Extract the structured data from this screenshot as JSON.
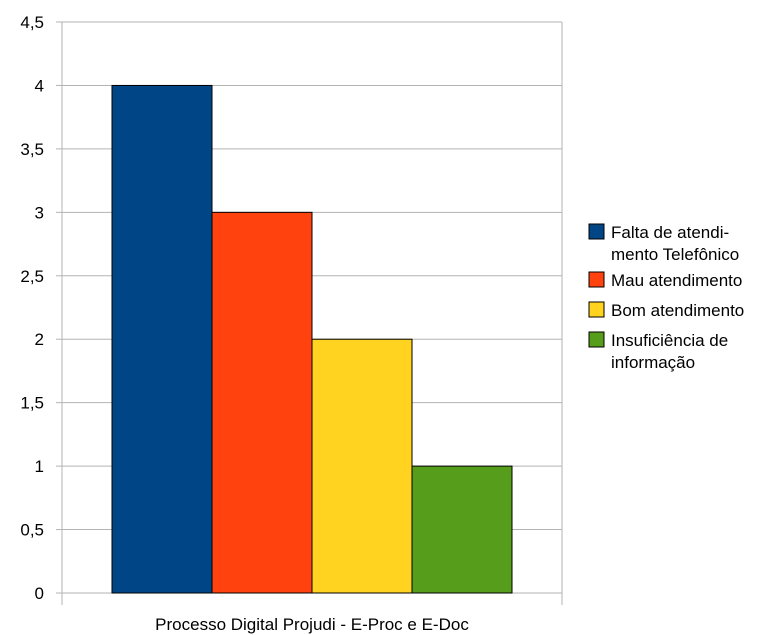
{
  "chart_data": {
    "type": "bar",
    "categories": [
      "Processo Digital Projudi - E-Proc e E-Doc"
    ],
    "series": [
      {
        "name": "Falta de atendi-|mento Telefônico",
        "values": [
          4
        ],
        "color": "#004586"
      },
      {
        "name": "Mau atendimento",
        "values": [
          3
        ],
        "color": "#ff420e"
      },
      {
        "name": "Bom atendimento",
        "values": [
          2
        ],
        "color": "#ffd320"
      },
      {
        "name": "Insuficiência de|informação",
        "values": [
          1
        ],
        "color": "#579d1c"
      }
    ],
    "yticks": [
      "0",
      "0,5",
      "1",
      "1,5",
      "2",
      "2,5",
      "3",
      "3,5",
      "4",
      "4,5"
    ],
    "ylim": [
      0,
      4.5
    ],
    "grid": true,
    "legend_position": "right",
    "title": "",
    "xlabel": "",
    "ylabel": ""
  }
}
